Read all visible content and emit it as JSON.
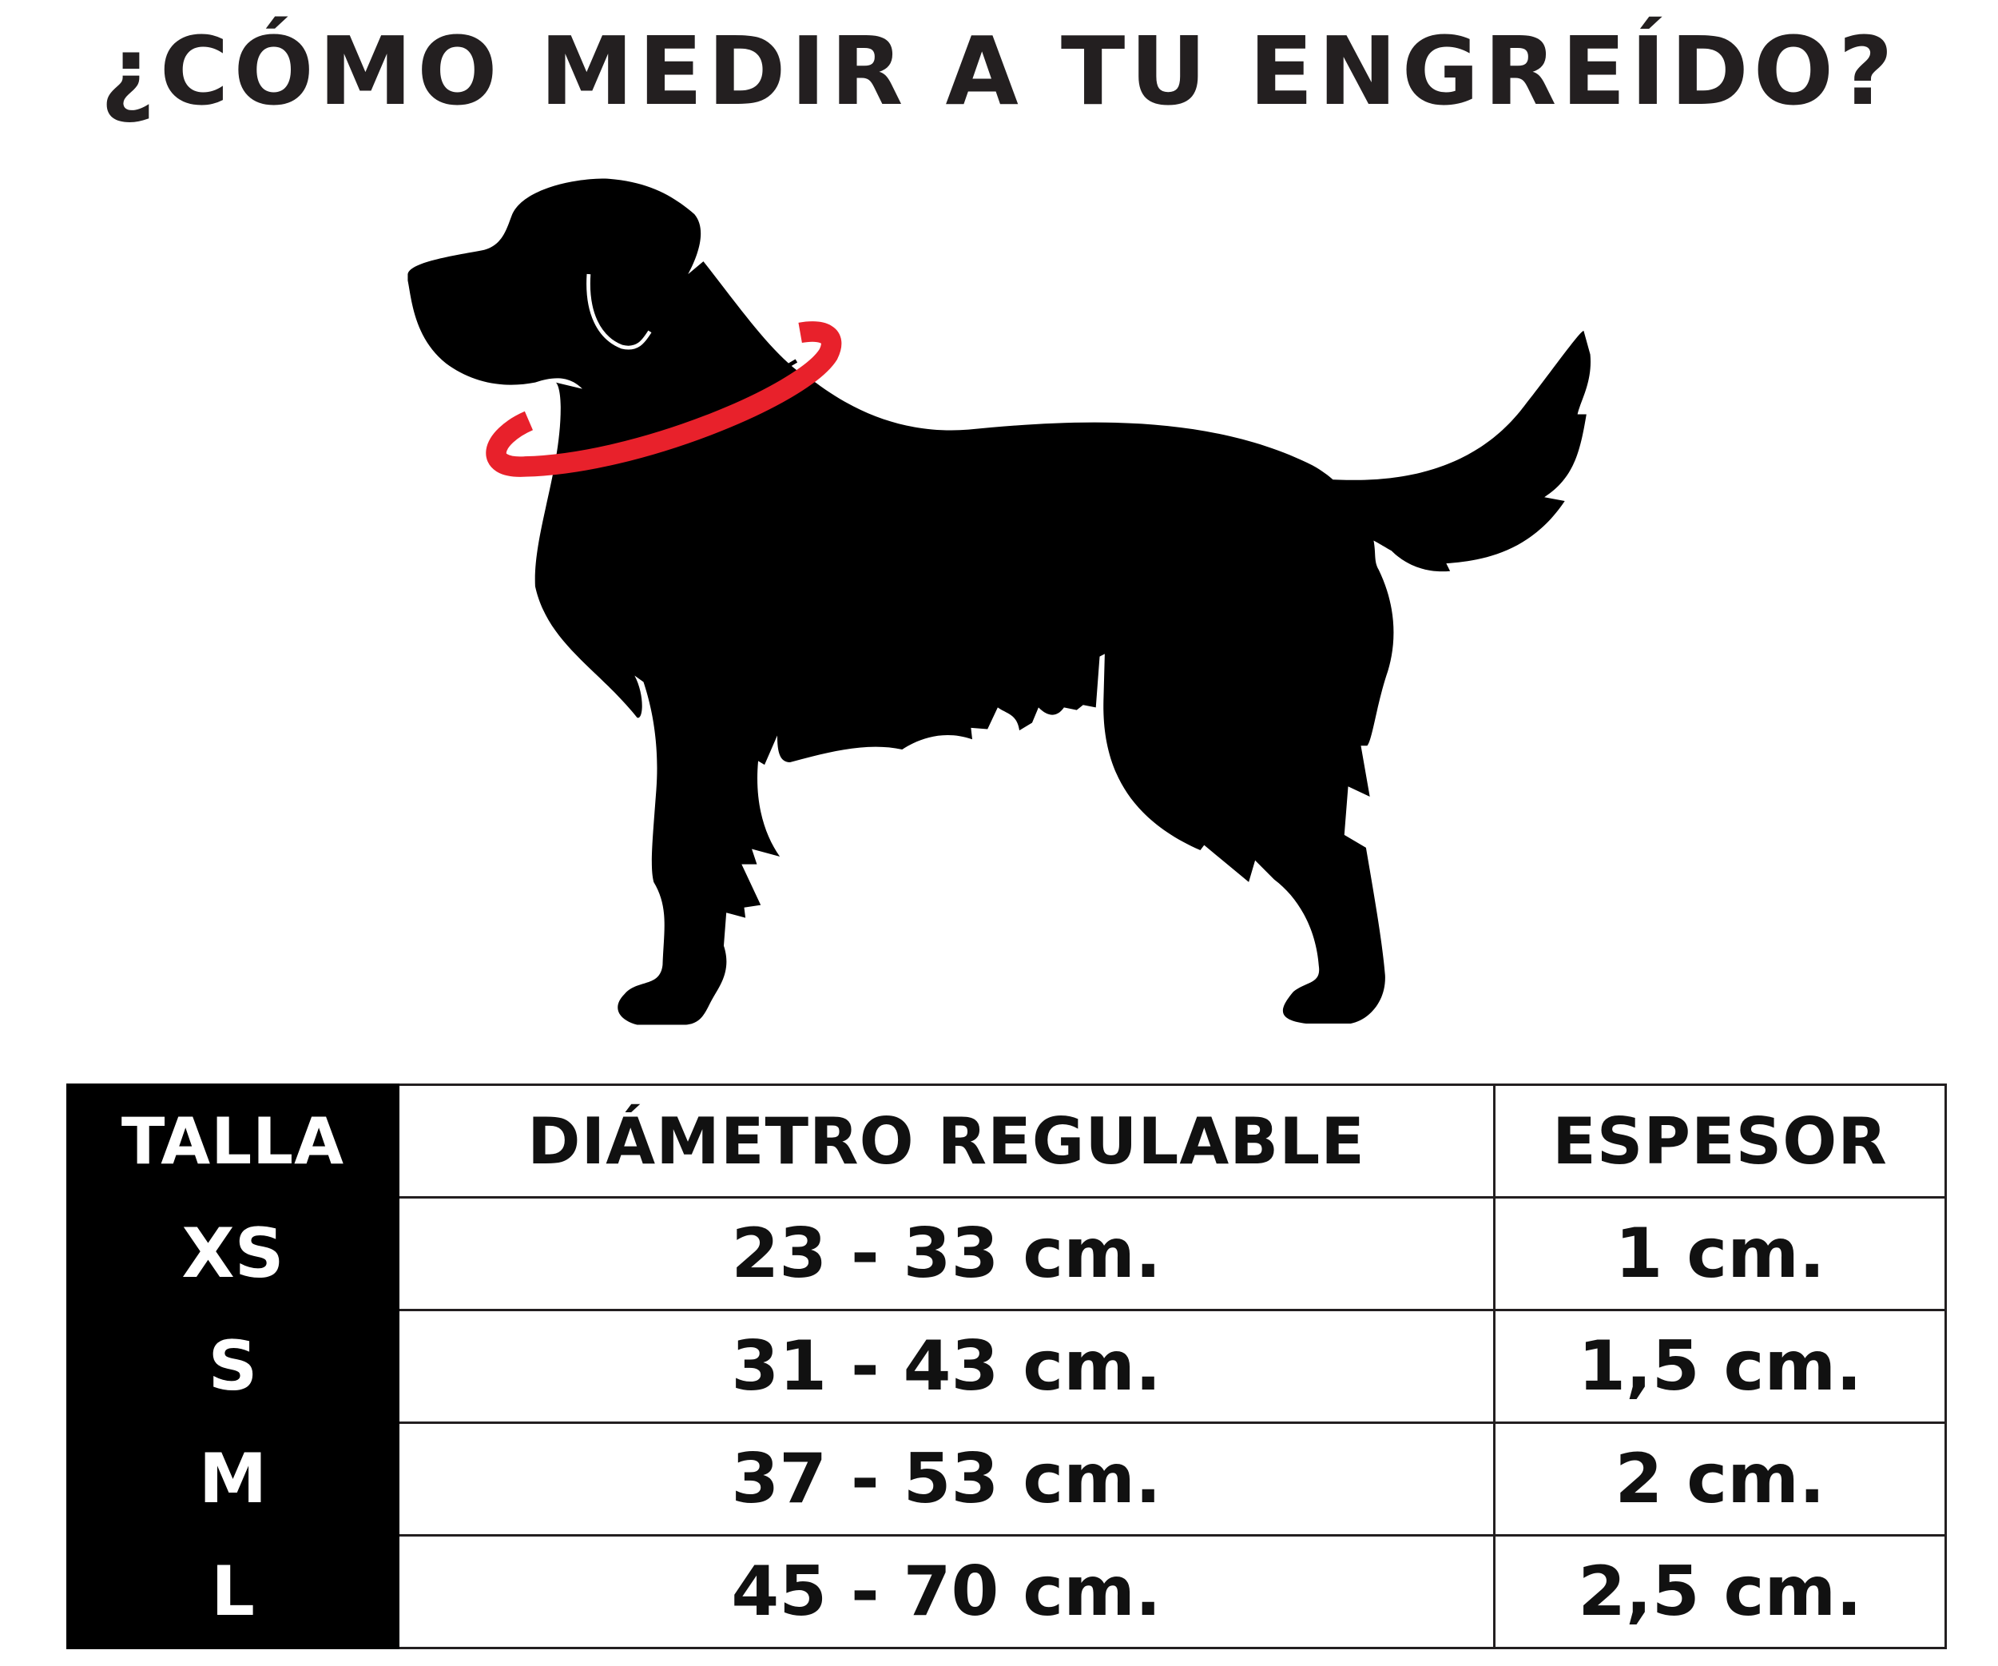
{
  "title": "¿CÓMO MEDIR A TU ENGREÍDO?",
  "illustration": {
    "icon": "dog-silhouette-with-collar-icon",
    "collar_color": "#e8212b"
  },
  "table": {
    "headers": [
      "TALLA",
      "DIÁMETRO REGULABLE",
      "ESPESOR"
    ],
    "rows": [
      {
        "size": "XS",
        "diameter": "23 - 33 cm.",
        "thickness": "1 cm."
      },
      {
        "size": "S",
        "diameter": "31 - 43 cm.",
        "thickness": "1,5 cm."
      },
      {
        "size": "M",
        "diameter": "37 - 53 cm.",
        "thickness": "2 cm."
      },
      {
        "size": "L",
        "diameter": "45 - 70 cm.",
        "thickness": "2,5 cm."
      }
    ]
  }
}
